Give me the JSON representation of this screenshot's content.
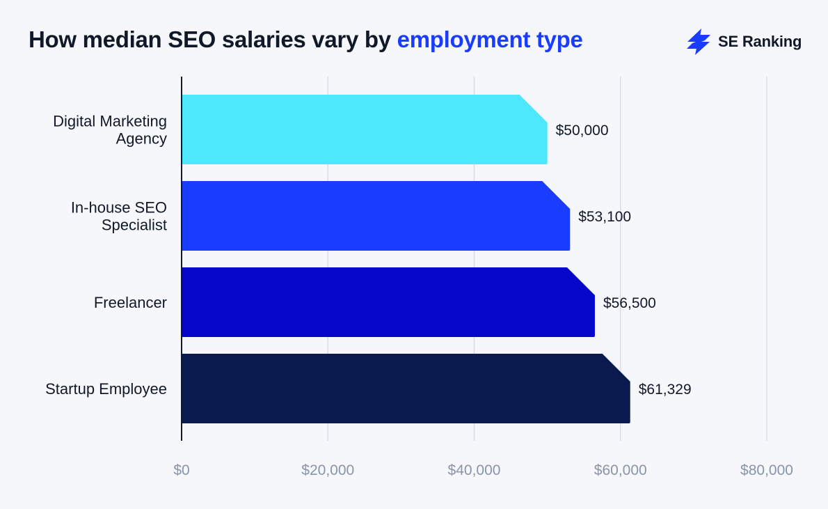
{
  "header": {
    "title_main": "How median SEO salaries vary by ",
    "title_accent": "employment type",
    "brand": "SE Ranking"
  },
  "colors": {
    "accent": "#1a3cff",
    "grid": "#d9dde7",
    "axis": "#111827"
  },
  "chart_data": {
    "type": "bar",
    "orientation": "horizontal",
    "title": "How median SEO salaries vary by employment type",
    "categories": [
      [
        "Digital Marketing",
        "Agency"
      ],
      [
        "In-house SEO",
        "Specialist"
      ],
      [
        "Freelancer"
      ],
      [
        "Startup Employee"
      ]
    ],
    "values": [
      50000,
      53100,
      56500,
      61329
    ],
    "value_labels": [
      "$50,000",
      "$53,100",
      "$56,500",
      "$61,329"
    ],
    "bar_colors": [
      "#4de8fb",
      "#1a3cff",
      "#0707c9",
      "#0a1a4e"
    ],
    "xlim": [
      0,
      80000
    ],
    "x_ticks": [
      0,
      20000,
      40000,
      60000,
      80000
    ],
    "x_tick_labels": [
      "$0",
      "$20,000",
      "$40,000",
      "$60,000",
      "$80,000"
    ],
    "grid": true,
    "xlabel": "",
    "ylabel": ""
  }
}
